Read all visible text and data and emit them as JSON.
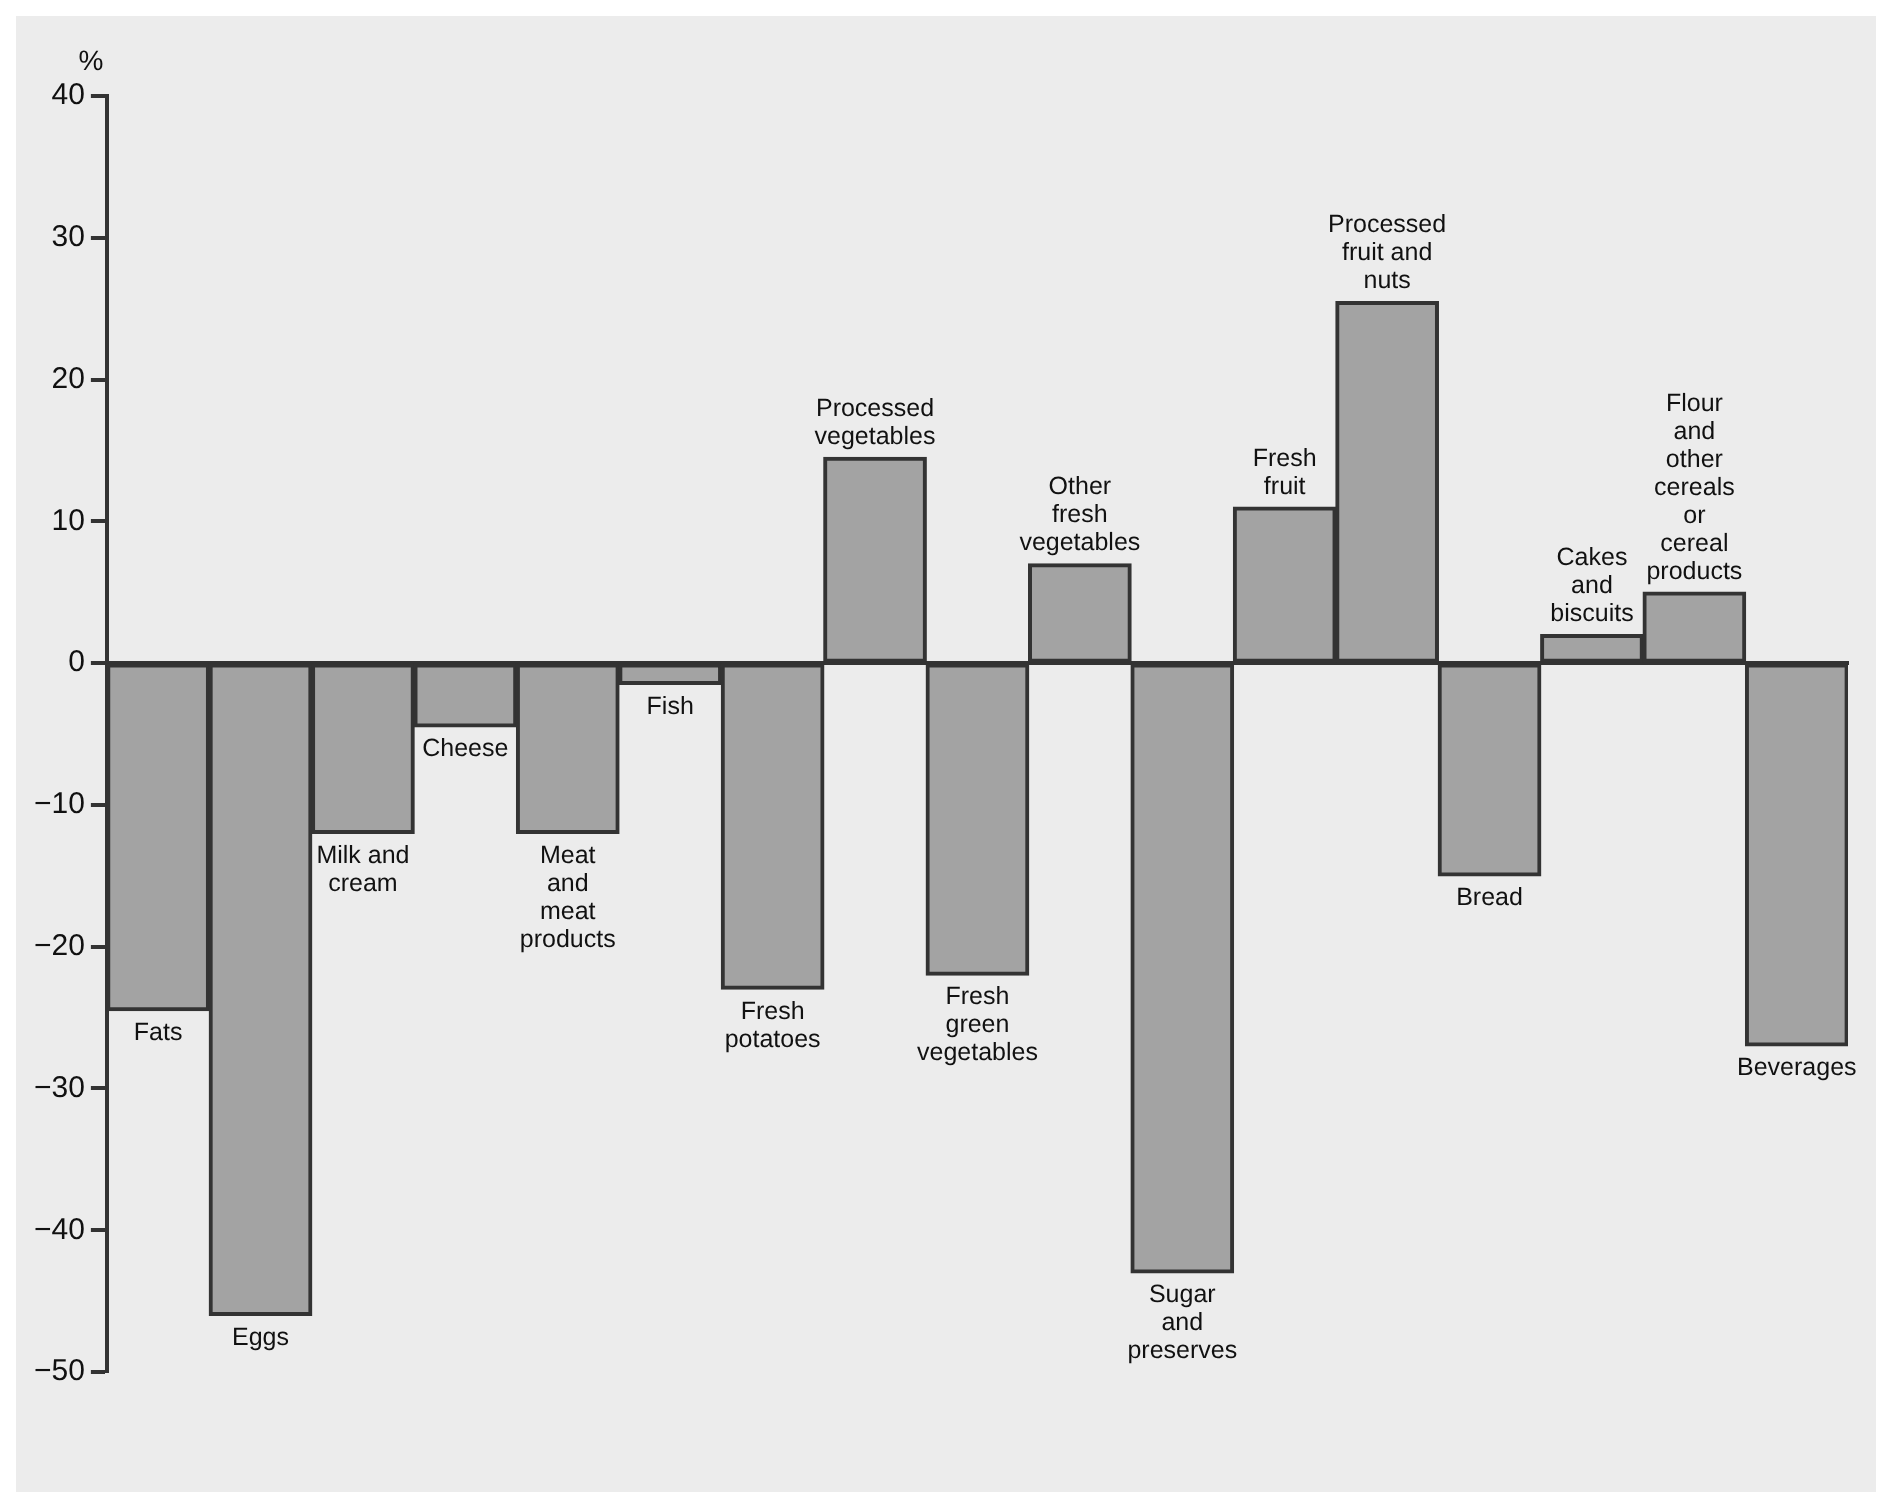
{
  "chart_data": {
    "type": "bar",
    "ylabel": "%",
    "categories": [
      "Fats",
      "Eggs",
      "Milk and cream",
      "Cheese",
      "Meat and meat products",
      "Fish",
      "Fresh potatoes",
      "Processed vegetables",
      "Fresh green vegetables",
      "Other fresh vegetables",
      "Sugar and preserves",
      "Fresh fruit",
      "Processed fruit and nuts",
      "Bread",
      "Cakes and biscuits",
      "Flour and other cereals or cereal products",
      "Beverages"
    ],
    "values": [
      -24.5,
      -46,
      -12,
      -4.5,
      -12,
      -1.5,
      -23,
      14.5,
      -22,
      7,
      -43,
      11,
      25.5,
      -15,
      2,
      5,
      -27
    ],
    "color": "#a3a3a3",
    "ylim": [
      -50,
      40
    ],
    "yticks": [
      -50,
      -40,
      -30,
      -20,
      -10,
      0,
      10,
      20,
      30,
      40
    ],
    "tick_labels": "y"
  }
}
